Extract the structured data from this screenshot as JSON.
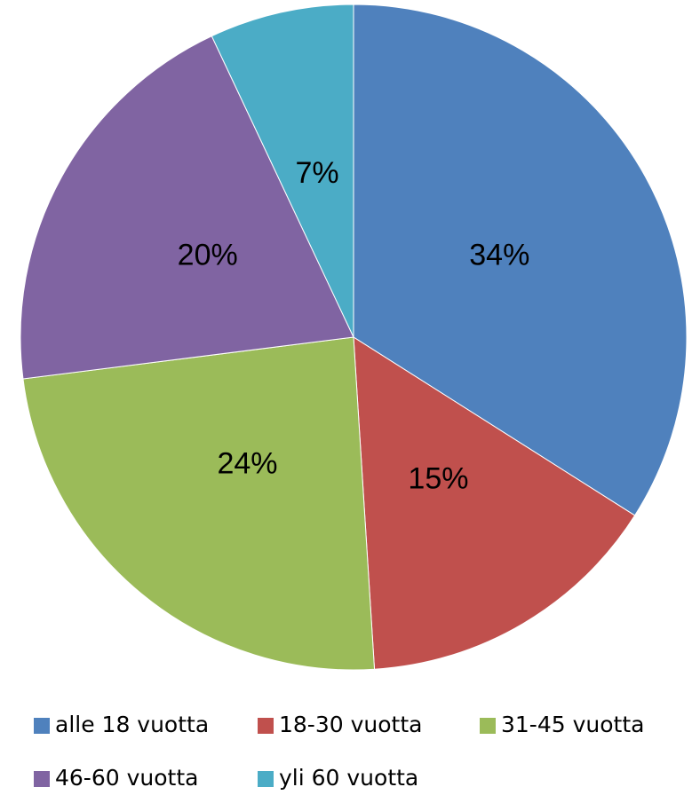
{
  "chart_data": {
    "type": "pie",
    "categories": [
      "alle 18 vuotta",
      "18-30 vuotta",
      "31-45 vuotta",
      "46-60 vuotta",
      "yli 60 vuotta"
    ],
    "values": [
      34,
      15,
      24,
      20,
      7
    ],
    "value_labels": [
      "34%",
      "15%",
      "24%",
      "20%",
      "7%"
    ],
    "colors": [
      "#4f81bd",
      "#c0504d",
      "#9bbb59",
      "#8064a2",
      "#4bacc6"
    ]
  }
}
